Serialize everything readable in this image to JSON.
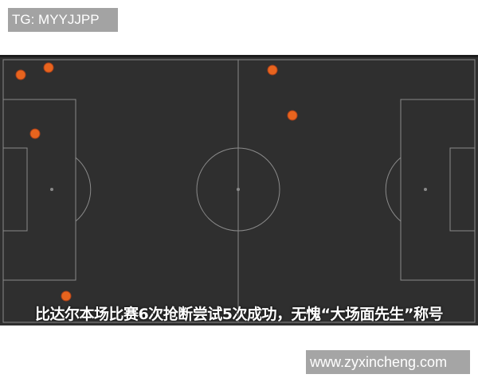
{
  "watermark_top": "TG: MYYJJPP",
  "caption": "比达尔本场比赛6次抢断尝试5次成功，无愧“大场面先生”称号",
  "watermark_bottom": "www.zyxincheng.com",
  "colors": {
    "pitch": "#2f2f2f",
    "lines": "#8a8a8a",
    "tackle_dot": "#e8641e"
  },
  "tackles_count_shown": 6
}
